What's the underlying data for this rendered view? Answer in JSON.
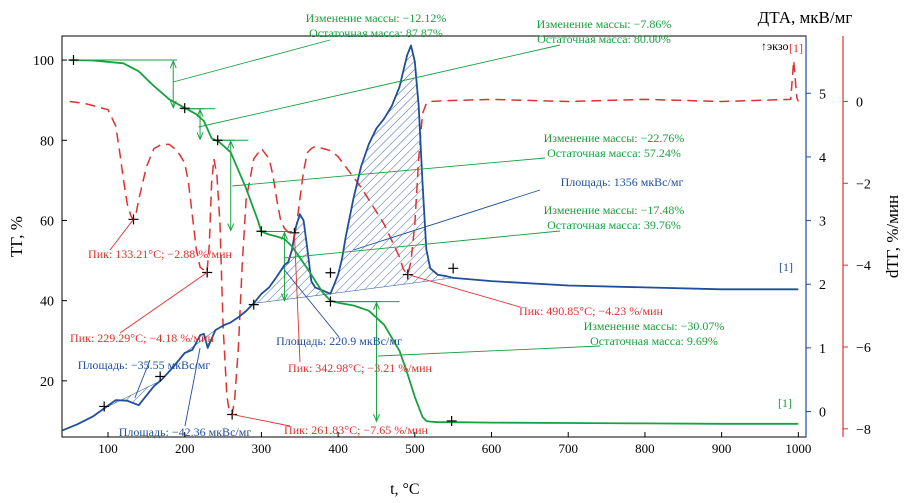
{
  "chart_data": {
    "type": "line",
    "title": "",
    "xlabel": "t, °C",
    "xlim": [
      40,
      1010
    ],
    "xticks": [
      100,
      200,
      300,
      400,
      500,
      600,
      700,
      800,
      900,
      1000
    ],
    "axes": {
      "tg": {
        "label": "ТГ, %",
        "lim": [
          6,
          106
        ],
        "ticks": [
          20,
          40,
          60,
          80,
          100
        ],
        "color": "#000000"
      },
      "dta": {
        "label": "ДТА, мкВ/мг",
        "lim": [
          -0.4,
          5.9
        ],
        "ticks": [
          0,
          1,
          2,
          3,
          4,
          5
        ],
        "color": "#1f4e9c",
        "exo_label": "↑экзо"
      },
      "dtg": {
        "label": "dТГ, %/мин",
        "lim": [
          -8.2,
          1.6
        ],
        "ticks": [
          0,
          -2,
          -4,
          -6,
          -8
        ],
        "color": "#e03030"
      }
    },
    "series": [
      {
        "name": "ТГ",
        "axis": "tg",
        "color": "#1aa040",
        "x": [
          50,
          80,
          120,
          140,
          160,
          180,
          200,
          215,
          225,
          235,
          245,
          260,
          280,
          295,
          300,
          310,
          320,
          330,
          340,
          360,
          380,
          390,
          400,
          420,
          440,
          460,
          480,
          490,
          500,
          510,
          515,
          520,
          530,
          550,
          600,
          700,
          800,
          900,
          1000
        ],
        "y": [
          100,
          99.9,
          99.2,
          97.2,
          93.5,
          90.2,
          88.1,
          86.5,
          84.8,
          80.5,
          79.6,
          77,
          68,
          60.2,
          57.2,
          56.5,
          56,
          55.4,
          53.5,
          48,
          42,
          40,
          39.5,
          38.8,
          37.5,
          34,
          27.5,
          22,
          16,
          11,
          10,
          9.85,
          9.7,
          9.69,
          9.6,
          9.5,
          9.4,
          9.3,
          9.3
        ]
      },
      {
        "name": "ДТА",
        "axis": "dta",
        "color": "#1f4e9c",
        "x": [
          40,
          60,
          80,
          95,
          110,
          125,
          140,
          150,
          160,
          170,
          185,
          200,
          210,
          215,
          220,
          225,
          230,
          240,
          250,
          260,
          270,
          280,
          290,
          300,
          310,
          320,
          330,
          335,
          340,
          345,
          350,
          355,
          360,
          365,
          370,
          380,
          390,
          395,
          400,
          405,
          410,
          420,
          430,
          440,
          450,
          460,
          470,
          480,
          485,
          490,
          495,
          500,
          505,
          510,
          515,
          520,
          525,
          530,
          540,
          550,
          600,
          700,
          800,
          900,
          1000
        ],
        "y": [
          -0.3,
          -0.2,
          -0.08,
          0.05,
          0.18,
          0.17,
          0.1,
          0.25,
          0.4,
          0.5,
          0.7,
          0.92,
          0.97,
          1.08,
          1.2,
          1.22,
          1.0,
          1.28,
          1.35,
          1.4,
          1.48,
          1.58,
          1.7,
          1.85,
          1.95,
          2.12,
          2.3,
          2.35,
          2.55,
          2.9,
          3.1,
          3.0,
          2.55,
          2.05,
          1.95,
          1.9,
          1.85,
          2.0,
          2.15,
          2.4,
          2.75,
          3.35,
          3.85,
          4.2,
          4.45,
          4.6,
          4.8,
          5.1,
          5.35,
          5.6,
          5.75,
          5.5,
          4.8,
          3.6,
          2.55,
          2.25,
          2.2,
          2.15,
          2.13,
          2.1,
          2.05,
          1.98,
          1.95,
          1.92,
          1.92
        ]
      },
      {
        "name": "dТГ",
        "axis": "dtg",
        "color": "#e03030",
        "x": [
          50,
          70,
          90,
          100,
          110,
          115,
          120,
          125,
          130,
          133,
          136,
          140,
          150,
          160,
          170,
          180,
          190,
          200,
          205,
          210,
          215,
          220,
          225,
          229,
          232,
          235,
          238,
          242,
          246,
          250,
          255,
          258,
          261.8,
          265,
          270,
          275,
          280,
          290,
          300,
          310,
          315,
          320,
          325,
          330,
          335,
          340,
          342.9,
          346,
          350,
          355,
          360,
          365,
          370,
          380,
          390,
          400,
          410,
          420,
          430,
          440,
          450,
          460,
          470,
          480,
          485,
          490.8,
          495,
          500,
          505,
          510,
          515,
          520,
          540,
          600,
          700,
          800,
          900,
          990,
          994,
          998,
          1000
        ],
        "y": [
          0,
          -0.05,
          -0.15,
          -0.2,
          -0.6,
          -1.2,
          -1.9,
          -2.5,
          -2.8,
          -2.88,
          -2.8,
          -2.4,
          -1.6,
          -1.15,
          -1.05,
          -1.05,
          -1.2,
          -1.5,
          -2,
          -2.8,
          -3.6,
          -4.05,
          -4.12,
          -4.18,
          -3.5,
          -2,
          -1.4,
          -1.8,
          -3,
          -5.5,
          -7.2,
          -7.55,
          -7.65,
          -7.3,
          -6,
          -4,
          -2.4,
          -1.4,
          -1.15,
          -1.4,
          -1.8,
          -2.4,
          -2.9,
          -3.1,
          -3.2,
          -3.2,
          -3.21,
          -3.0,
          -2.4,
          -1.7,
          -1.25,
          -1.15,
          -1.1,
          -1.15,
          -1.2,
          -1.35,
          -1.6,
          -1.85,
          -2.1,
          -2.4,
          -2.7,
          -3.0,
          -3.4,
          -3.8,
          -4.1,
          -4.23,
          -3.9,
          -3.0,
          -1.4,
          -0.3,
          -0.05,
          0,
          0.02,
          0.05,
          0,
          0.05,
          0,
          0.05,
          1.0,
          0.1,
          0
        ]
      }
    ],
    "tg_markers": [
      [
        55,
        100
      ],
      [
        200,
        88
      ],
      [
        243,
        80
      ],
      [
        300,
        57.3
      ],
      [
        390,
        39.8
      ],
      [
        548,
        10
      ]
    ],
    "dta_markers": [
      [
        95,
        0.08
      ],
      [
        168,
        0.55
      ],
      [
        290,
        1.68
      ],
      [
        390,
        2.18
      ],
      [
        550,
        2.25
      ]
    ],
    "dtg_markers": [
      [
        133.21,
        -2.88
      ],
      [
        229.29,
        -4.18
      ],
      [
        261.83,
        -7.65
      ],
      [
        342.98,
        -3.21
      ],
      [
        490.85,
        -4.23
      ]
    ],
    "mass_steps": [
      {
        "x1": 55,
        "x2": 200,
        "y_hi": 100,
        "y_lo": 87.87,
        "arrow_x": 185,
        "label": [
          "Изменение массы:  −12.12%",
          "Остаточная масса: 87.87%"
        ]
      },
      {
        "x1": 200,
        "x2": 243,
        "y_hi": 87.87,
        "y_lo": 80.0,
        "arrow_x": 220,
        "label": [
          "Изменение массы:  −7.86%",
          "Остаточная масса: 80.00%"
        ]
      },
      {
        "x1": 243,
        "x2": 300,
        "y_hi": 80.0,
        "y_lo": 57.24,
        "arrow_x": 260,
        "label": [
          "Изменение массы:  −22.76%",
          "Остаточная масса:  57.24%"
        ]
      },
      {
        "x1": 300,
        "x2": 390,
        "y_hi": 57.24,
        "y_lo": 39.76,
        "arrow_x": 330,
        "label": [
          "Изменение массы:  −17.48%",
          "Остаточная масса:  39.76%"
        ]
      },
      {
        "x1": 390,
        "x2": 548,
        "y_hi": 39.76,
        "y_lo": 9.69,
        "arrow_x": 450,
        "label": [
          "Изменение массы:  −30.07%",
          "Остаточная масса:  9.69%"
        ]
      }
    ],
    "peak_labels": [
      "Пик: 133.21°C; −2.88 %/мин",
      "Пик: 229.29°C; −4.18 %/мин",
      "Пик: 261.83°C; −7.65 %/мин",
      "Пик: 342.98°C; −3.21 %/мин",
      "Пик: 490.85°C; −4.23 %/мин"
    ],
    "area_labels": [
      "Площадь: −35.55 мкВс/мг",
      "Площадь: −42.36 мкВс/мг",
      "Площадь: 220.9 мкВс/мг",
      "Площадь: 1356 мкВс/мг"
    ],
    "curve_tags": [
      "[1]",
      "[1]",
      "[1]"
    ]
  }
}
